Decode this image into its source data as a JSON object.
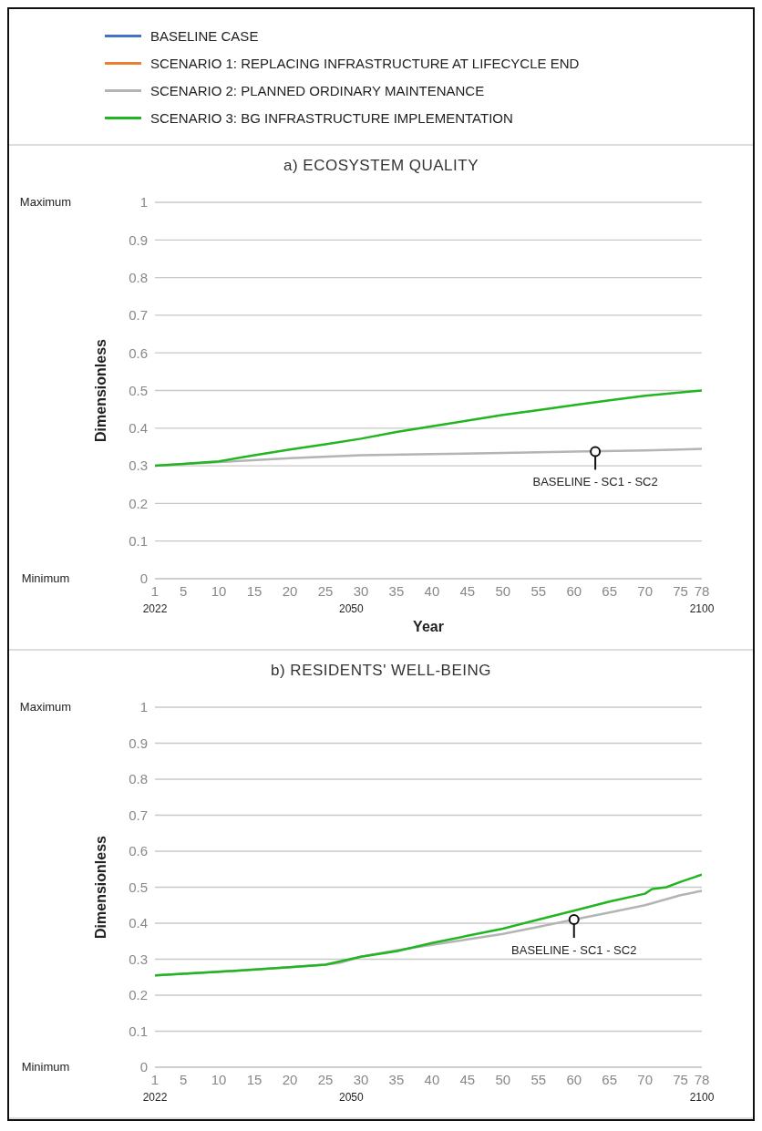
{
  "chart_data": [
    {
      "type": "line",
      "title": "a) ECOSYSTEM QUALITY",
      "xlabel": "Year",
      "ylabel": "Dimensionless",
      "legend": "top",
      "grid": "y",
      "marker": "none",
      "line_style": "solid",
      "xlim": [
        1,
        78
      ],
      "xticks": [
        1,
        5,
        10,
        15,
        20,
        25,
        30,
        35,
        40,
        45,
        50,
        55,
        60,
        65,
        70,
        75,
        78
      ],
      "ylim": [
        0,
        1
      ],
      "yticks": [
        0,
        0.1,
        0.2,
        0.3,
        0.4,
        0.5,
        0.6,
        0.7,
        0.8,
        0.9,
        1
      ],
      "x2lim": [
        2022,
        2100
      ],
      "x2ticks": [
        2022,
        2050,
        2100
      ],
      "annotations": [
        "Maximum",
        "Minimum",
        {
          "text": "BASELINE - SC1 - SC2",
          "x": 63,
          "y": 0.338
        }
      ],
      "series": [
        {
          "name": "BASELINE CASE",
          "color": "#4472c4"
        },
        {
          "name": "SCENARIO 1: REPLACING INFRASTRUCTURE AT LIFECYCLE END",
          "color": "#ed7d31"
        },
        {
          "name": "SCENARIO 2: PLANNED ORDINARY MAINTENANCE",
          "color": "#b4b4b4",
          "x": [
            1,
            10,
            20,
            30,
            40,
            50,
            60,
            70,
            78
          ],
          "values": [
            0.3,
            0.31,
            0.32,
            0.328,
            0.331,
            0.334,
            0.338,
            0.341,
            0.345
          ]
        },
        {
          "name": "SCENARIO 3: BG INFRASTRUCTURE IMPLEMENTATION",
          "color": "#22b522",
          "x": [
            1,
            5,
            10,
            15,
            20,
            25,
            30,
            35,
            40,
            45,
            50,
            55,
            60,
            65,
            70,
            78
          ],
          "values": [
            0.3,
            0.305,
            0.312,
            0.328,
            0.343,
            0.357,
            0.372,
            0.39,
            0.405,
            0.42,
            0.435,
            0.448,
            0.461,
            0.474,
            0.486,
            0.5
          ]
        }
      ]
    },
    {
      "type": "line",
      "title": "b) RESIDENTS' WELL-BEING",
      "ylabel": "Dimensionless",
      "grid": "y",
      "marker": "none",
      "line_style": "solid",
      "xlim": [
        1,
        78
      ],
      "xticks": [
        1,
        5,
        10,
        15,
        20,
        25,
        30,
        35,
        40,
        45,
        50,
        55,
        60,
        65,
        70,
        75,
        78
      ],
      "ylim": [
        0,
        1
      ],
      "yticks": [
        0,
        0.1,
        0.2,
        0.3,
        0.4,
        0.5,
        0.6,
        0.7,
        0.8,
        0.9,
        1
      ],
      "x2lim": [
        2022,
        2100
      ],
      "x2ticks": [
        2022,
        2050,
        2100
      ],
      "annotations": [
        "Maximum",
        "Minimum",
        {
          "text": "BASELINE - SC1 - SC2",
          "x": 60,
          "y": 0.41
        }
      ],
      "series": [
        {
          "color": "#b4b4b4",
          "x": [
            1,
            10,
            20,
            25,
            27,
            30,
            35,
            40,
            45,
            50,
            55,
            60,
            65,
            70,
            75,
            78
          ],
          "values": [
            0.255,
            0.265,
            0.278,
            0.285,
            0.29,
            0.307,
            0.325,
            0.34,
            0.355,
            0.37,
            0.39,
            0.41,
            0.43,
            0.45,
            0.478,
            0.49
          ]
        },
        {
          "color": "#22b522",
          "x": [
            1,
            10,
            20,
            25,
            28,
            30,
            35,
            40,
            45,
            50,
            55,
            60,
            65,
            70,
            71,
            73,
            75,
            78
          ],
          "values": [
            0.255,
            0.265,
            0.278,
            0.285,
            0.298,
            0.307,
            0.322,
            0.345,
            0.365,
            0.385,
            0.41,
            0.435,
            0.46,
            0.482,
            0.495,
            0.5,
            0.515,
            0.535
          ]
        }
      ]
    }
  ]
}
